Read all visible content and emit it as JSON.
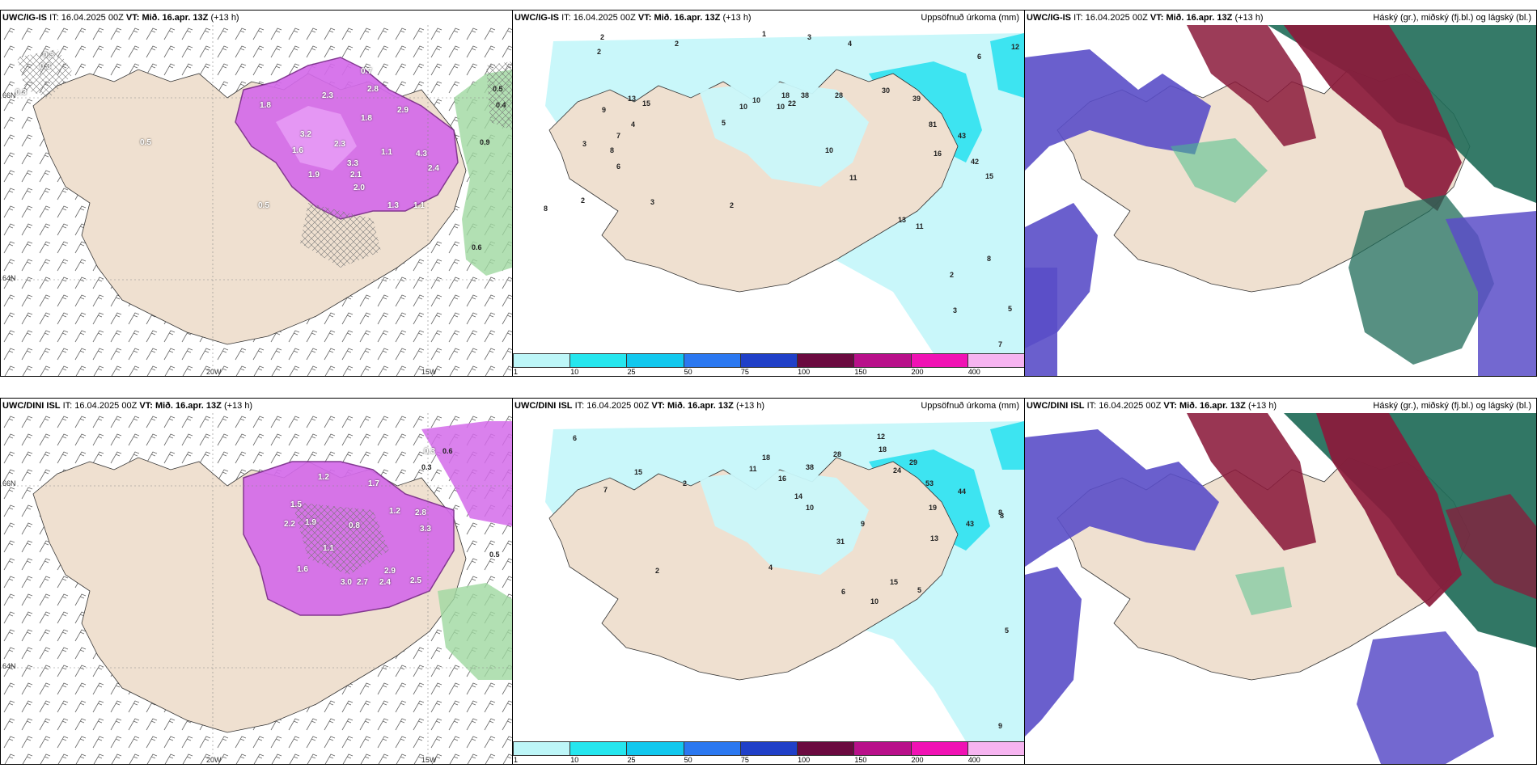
{
  "panels": [
    {
      "id": "ig-wind",
      "model": "UWC/IG-IS",
      "it_label": "IT:",
      "it_value": "16.04.2025 00Z",
      "vt_label": "VT:",
      "vt_value": "Mið. 16.apr. 13Z",
      "lead": "(+13 h)",
      "right_title": "",
      "labels": [
        "0.3",
        "0.3",
        "0.7",
        "0.3",
        "0.5",
        "1.8",
        "2.8",
        "2.3",
        "1.8",
        "2.9",
        "3.2",
        "2.3",
        "3.3",
        "2.1",
        "2.4",
        "1.6",
        "1.1",
        "4.3",
        "1.9",
        "2.0",
        "0.5",
        "1.3",
        "1.1",
        "0.9",
        "0.5",
        "0.4",
        "0.6"
      ],
      "axis": {
        "lon1": "20W",
        "lon2": "15W",
        "lat1": "64N",
        "lat2": "66N"
      }
    },
    {
      "id": "ig-precip",
      "model": "UWC/IG-IS",
      "it_label": "IT:",
      "it_value": "16.04.2025 00Z",
      "vt_label": "VT:",
      "vt_value": "Mið. 16.apr. 13Z",
      "lead": "(+13 h)",
      "right_title": "Uppsöfnuð úrkoma (mm)",
      "labels": [
        "2",
        "2",
        "1",
        "3",
        "4",
        "12",
        "6",
        "10",
        "13",
        "15",
        "10",
        "5",
        "18",
        "22",
        "10",
        "38",
        "28",
        "30",
        "39",
        "4",
        "7",
        "3",
        "8",
        "6",
        "2",
        "9",
        "81",
        "43",
        "16",
        "42",
        "15",
        "2",
        "3",
        "2",
        "8",
        "11",
        "10",
        "13",
        "11",
        "8",
        "2",
        "5",
        "7",
        "3"
      ],
      "colorbar": [
        "1",
        "10",
        "25",
        "50",
        "75",
        "100",
        "150",
        "200",
        "400"
      ]
    },
    {
      "id": "ig-cloud",
      "model": "UWC/IG-IS",
      "it_label": "IT:",
      "it_value": "16.04.2025 00Z",
      "vt_label": "VT:",
      "vt_value": "Mið. 16.apr. 13Z",
      "lead": "(+13 h)",
      "right_title": "Háský (gr.), miðský (fj.bl.) og lágský (bl.)"
    },
    {
      "id": "dini-wind",
      "model": "UWC/DINI ISL",
      "it_label": "IT:",
      "it_value": "16.04.2025 00Z",
      "vt_label": "VT:",
      "vt_value": "Mið. 16.apr. 13Z",
      "lead": "(+13 h)",
      "right_title": "",
      "labels": [
        "0.3",
        "1.2",
        "1.7",
        "2.2",
        "1.5",
        "1.9",
        "0.8",
        "1.2",
        "2.8",
        "3.3",
        "1.1",
        "2.9",
        "3.0",
        "2.7",
        "2.4",
        "1.6",
        "2.5",
        "0.5",
        "0.3",
        "0.6"
      ],
      "axis": {
        "lon1": "20W",
        "lon2": "15W",
        "lat1": "64N",
        "lat2": "66N"
      }
    },
    {
      "id": "dini-precip",
      "model": "UWC/DINI ISL",
      "it_label": "IT:",
      "it_value": "16.04.2025 00Z",
      "vt_label": "VT:",
      "vt_value": "Mið. 16.apr. 13Z",
      "lead": "(+13 h)",
      "right_title": "Uppsöfnuð úrkoma (mm)",
      "labels": [
        "6",
        "15",
        "7",
        "2",
        "11",
        "18",
        "16",
        "38",
        "28",
        "12",
        "18",
        "24",
        "29",
        "53",
        "44",
        "19",
        "43",
        "13",
        "8",
        "2",
        "4",
        "14",
        "10",
        "9",
        "31",
        "15",
        "10",
        "6",
        "5",
        "9",
        "8",
        "5"
      ],
      "colorbar": [
        "1",
        "10",
        "25",
        "50",
        "75",
        "100",
        "150",
        "200",
        "400"
      ]
    },
    {
      "id": "dini-cloud",
      "model": "UWC/DINI ISL",
      "it_label": "IT:",
      "it_value": "16.04.2025 00Z",
      "vt_label": "VT:",
      "vt_value": "Mið. 16.apr. 13Z",
      "lead": "(+13 h)",
      "right_title": "Háský (gr.), miðský (fj.bl.) og lágský (bl.)"
    }
  ],
  "colors": {
    "land": "#efe0d0",
    "precip_light": "#c9f7fa",
    "precip_mid": "#25e0ee",
    "snow_purple": "#d46bea",
    "snow_dark": "#7a2a8a",
    "rain_green": "#9fd8a0",
    "cloud_high": "#1f6b58",
    "cloud_mid": "#8b1a3b",
    "cloud_low": "#5a4ec8"
  },
  "colorbar_colors": [
    "#bdf6f8",
    "#26e6ee",
    "#12c8ee",
    "#2b78f0",
    "#2040c8",
    "#6b0a40",
    "#b8108a",
    "#f012b4",
    "#f6b4f0"
  ]
}
